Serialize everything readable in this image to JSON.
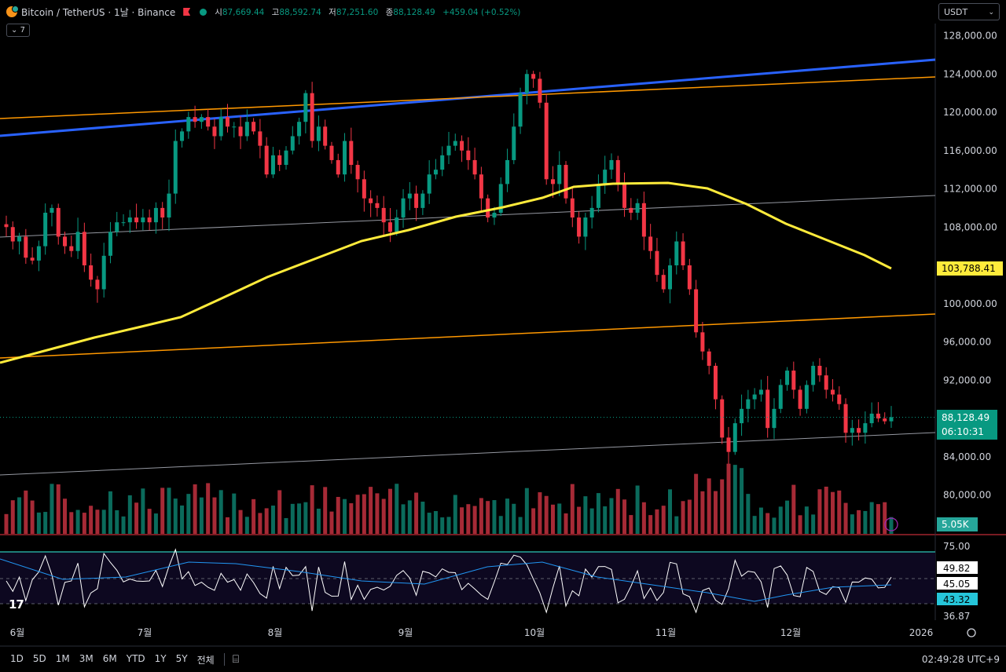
{
  "header": {
    "symbol": "Bitcoin / TetherUS · 1날 · Binance",
    "open_label": "시",
    "open": "87,669.44",
    "high_label": "고",
    "high": "88,592.74",
    "low_label": "저",
    "low": "87,251.60",
    "close_label": "종",
    "close": "88,128.49",
    "change": "+459.04 (+0.52%)"
  },
  "currency_select": {
    "value": "USDT"
  },
  "indicator_toggle": {
    "label": "7"
  },
  "price_axis": {
    "labels": [
      "128,000.00",
      "124,000.00",
      "120,000.00",
      "116,000.00",
      "112,000.00",
      "108,000.00",
      "100,000.00",
      "96,000.00",
      "92,000.00",
      "84,000.00",
      "80,000.00"
    ]
  },
  "badges": {
    "ma": "103,788.41",
    "last_price": "88,128.49",
    "countdown": "06:10:31",
    "volume": "5.05K"
  },
  "rsi_axis": {
    "labels": [
      "75.00",
      "49.82",
      "45.05",
      "43.32",
      "36.87"
    ]
  },
  "time_axis": {
    "labels": [
      "6월",
      "7월",
      "8월",
      "9월",
      "10월",
      "11월",
      "12월",
      "2026"
    ]
  },
  "bottom_bar": {
    "timeframes": [
      "1D",
      "5D",
      "1M",
      "3M",
      "6M",
      "YTD",
      "1Y",
      "5Y",
      "전체"
    ],
    "clock": "02:49:28 UTC+9"
  },
  "colors": {
    "up": "#089981",
    "down": "#f23645",
    "ma": "#ffeb3b",
    "trend_blue": "#2962ff",
    "trend_orange": "#ff9800",
    "rsi": "#ffffff",
    "rsi_ma": "#2196f3"
  },
  "chart_data": {
    "type": "candlestick",
    "ylim": [
      76000,
      130000
    ],
    "close_path": [
      108000,
      106500,
      107000,
      104800,
      104500,
      106000,
      109500,
      110000,
      107000,
      106000,
      105500,
      107500,
      104000,
      102500,
      101500,
      105000,
      107500,
      108500,
      108500,
      109000,
      108500,
      109000,
      108500,
      110000,
      109000,
      111500,
      117000,
      118000,
      119500,
      119000,
      119500,
      118500,
      117500,
      119500,
      118500,
      118500,
      117500,
      119000,
      118000,
      116500,
      113500,
      115500,
      114500,
      116000,
      117500,
      119000,
      122000,
      117000,
      118500,
      116500,
      115000,
      113500,
      117000,
      114500,
      113000,
      111000,
      110500,
      110000,
      108500,
      107500,
      109000,
      111000,
      111500,
      110000,
      111500,
      113500,
      114000,
      115500,
      116500,
      117000,
      116000,
      115000,
      113500,
      111000,
      109000,
      109500,
      112500,
      115000,
      118500,
      122000,
      124000,
      123500,
      121000,
      113000,
      112500,
      114500,
      111000,
      109000,
      107000,
      109000,
      110000,
      112500,
      114000,
      115000,
      112500,
      110000,
      109500,
      110500,
      107000,
      105500,
      103000,
      101500,
      104000,
      106500,
      104000,
      101500,
      97000,
      95000,
      93500,
      90000,
      86000,
      84500,
      87500,
      89000,
      90000,
      90500,
      91000,
      87000,
      89000,
      91500,
      93000,
      91000,
      89000,
      91500,
      93500,
      92500,
      91000,
      90500,
      89500,
      86500,
      87000,
      86500,
      87500,
      88500,
      88000,
      87700,
      88128
    ]
  },
  "volume_data": {
    "last": "5.05K"
  },
  "rsi_data": {
    "ylim": [
      20,
      80
    ],
    "levels": [
      70,
      50,
      30
    ]
  }
}
